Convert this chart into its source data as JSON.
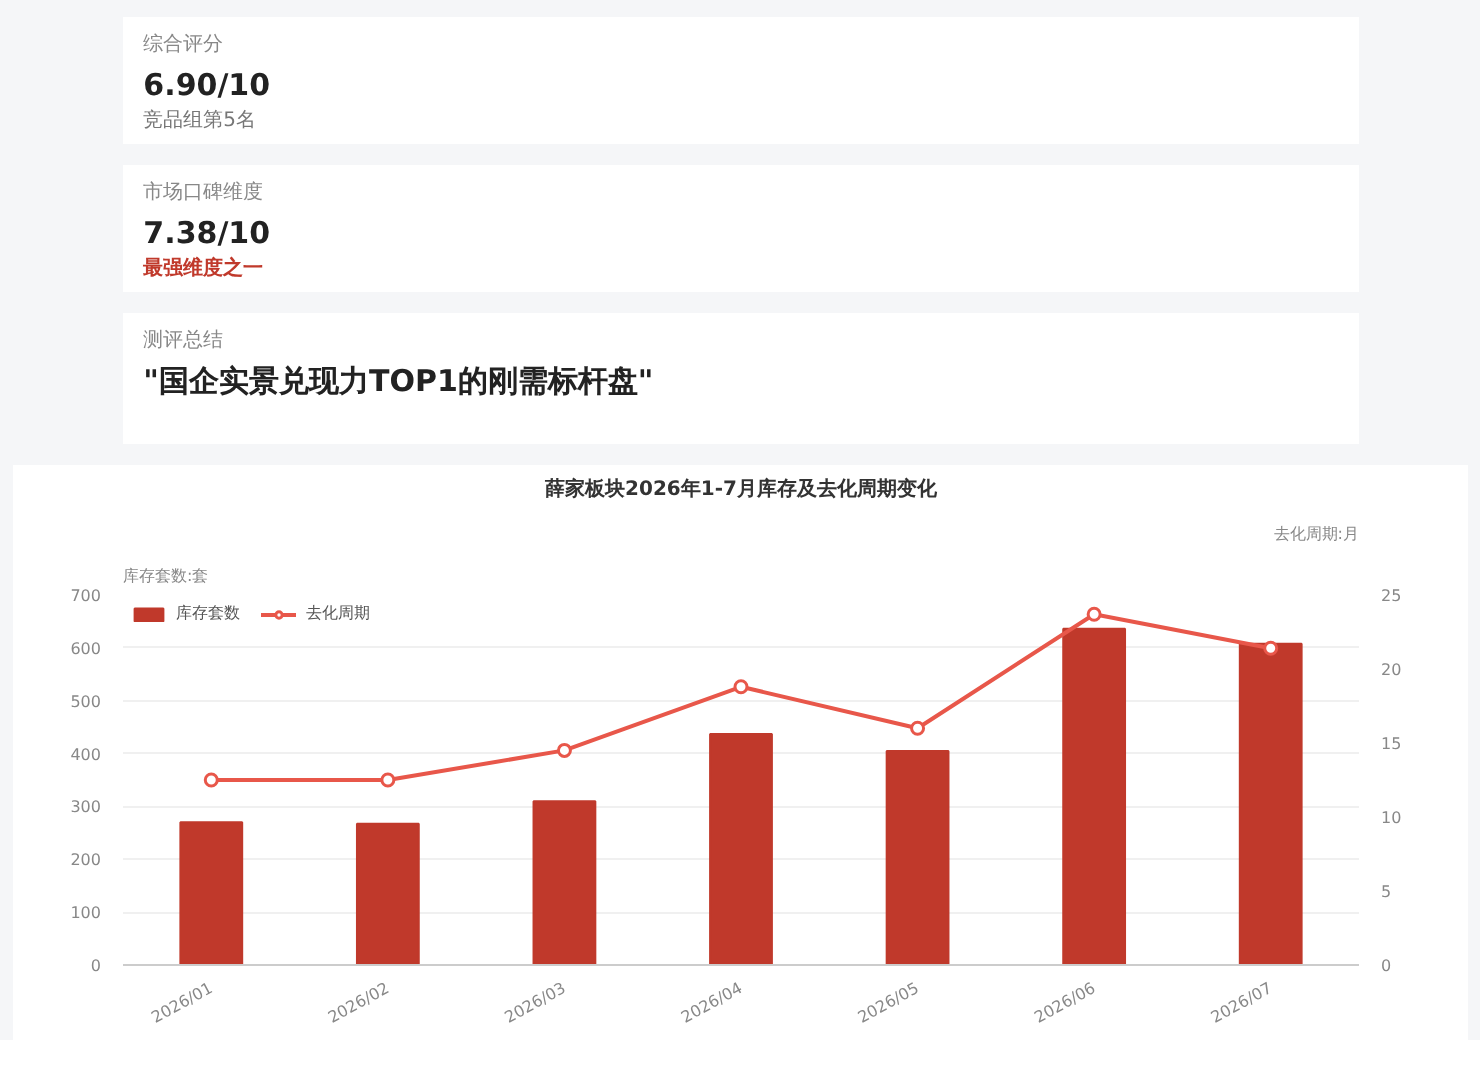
{
  "chart_data": [
    {
      "type": "other",
      "title": "综合评分",
      "annotations": [
        "6.90/10",
        "竞品组第5名"
      ]
    },
    {
      "type": "other",
      "title": "市场口碑维度",
      "annotations": [
        "7.38/10",
        "最强维度之一"
      ]
    },
    {
      "type": "other",
      "title": "测评总结",
      "annotations": [
        "\"国企实景兑现力TOP1的刚需标杆盘\""
      ]
    },
    {
      "type": "bar",
      "title": "薛家板块2026年1-7月库存及去化周期变化",
      "ylabel": "库存套数:套",
      "y2label": "去化周期:月",
      "categories": [
        "2026/01",
        "2026/02",
        "2026/03",
        "2026/04",
        "2026/05",
        "2026/06",
        "2026/07"
      ],
      "series": [
        {
          "name": "库存套数",
          "type": "bar",
          "color": "#c0392b",
          "values": [
            270,
            267,
            310,
            437,
            405,
            636,
            608
          ]
        },
        {
          "name": "去化周期",
          "type": "line",
          "axis": "y2",
          "color": "#e8574a",
          "values": [
            12.5,
            12.5,
            14.5,
            18.8,
            16.0,
            23.7,
            21.4
          ]
        }
      ],
      "ylim": [
        0,
        700
      ],
      "yticks": [
        0,
        100,
        200,
        300,
        400,
        500,
        600,
        700
      ],
      "y2lim": [
        0,
        25
      ],
      "y2ticks": [
        0,
        5,
        10,
        15,
        20,
        25
      ],
      "grid": "y",
      "legend": "top left",
      "marker": "circle",
      "line_style": "solid"
    }
  ]
}
